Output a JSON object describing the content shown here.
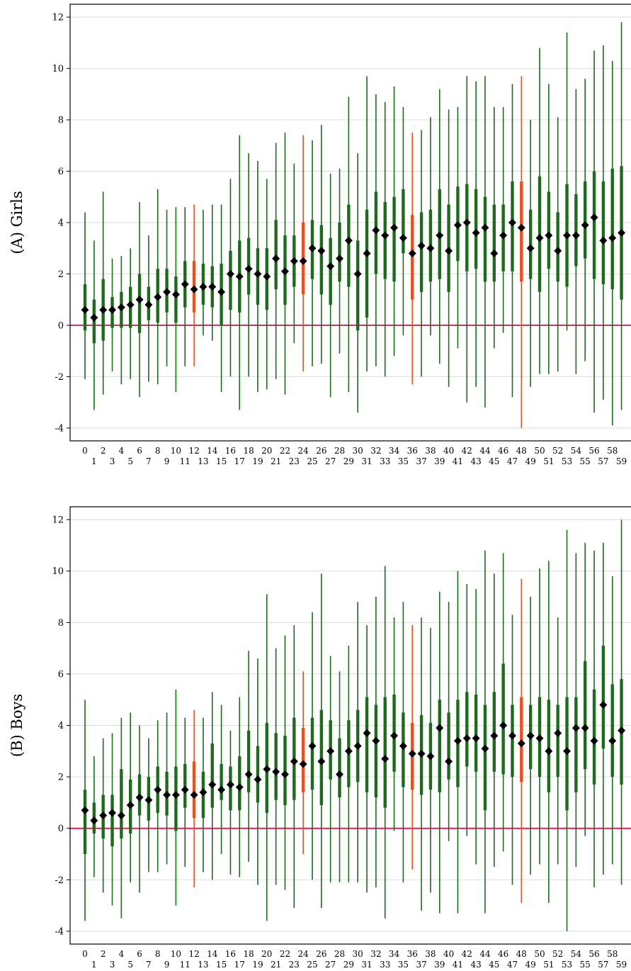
{
  "chart_data": [
    {
      "type": "box",
      "panel_label": "(A) Girls",
      "ylim": [
        -4.5,
        12.5
      ],
      "yticks": [
        -4,
        -2,
        0,
        2,
        4,
        6,
        8,
        10,
        12
      ],
      "ytick_labels": [
        "-4",
        "-2",
        "0",
        "2",
        "4",
        "6",
        "8",
        "10",
        "12"
      ],
      "x": [
        0,
        1,
        2,
        3,
        4,
        5,
        6,
        7,
        8,
        9,
        10,
        11,
        12,
        13,
        14,
        15,
        16,
        17,
        18,
        19,
        20,
        21,
        22,
        23,
        24,
        25,
        26,
        27,
        28,
        29,
        30,
        31,
        32,
        33,
        34,
        35,
        36,
        37,
        38,
        39,
        40,
        41,
        42,
        43,
        44,
        45,
        46,
        47,
        48,
        49,
        50,
        51,
        52,
        53,
        54,
        55,
        56,
        57,
        58,
        59
      ],
      "xtick_labels": [
        "0",
        "1",
        "2",
        "3",
        "4",
        "5",
        "6",
        "7",
        "8",
        "9",
        "10",
        "11",
        "12",
        "13",
        "14",
        "15",
        "16",
        "17",
        "18",
        "19",
        "20",
        "21",
        "22",
        "23",
        "24",
        "25",
        "26",
        "27",
        "28",
        "29",
        "30",
        "31",
        "32",
        "33",
        "34",
        "35",
        "36",
        "37",
        "38",
        "39",
        "40",
        "41",
        "42",
        "43",
        "44",
        "45",
        "46",
        "47",
        "48",
        "49",
        "50",
        "51",
        "52",
        "53",
        "54",
        "55",
        "56",
        "57",
        "58",
        "59"
      ],
      "highlight_x": [
        12,
        24,
        36,
        48
      ],
      "reference_line_y": 0,
      "grid": "horizontal",
      "colors": {
        "box": "#1e6b1e",
        "highlight": "#e8501e",
        "median": "#000000",
        "reference": "#c8003c",
        "grid": "#dcdcdc"
      },
      "median": [
        0.6,
        0.3,
        0.6,
        0.6,
        0.7,
        0.8,
        1.0,
        0.8,
        1.1,
        1.3,
        1.2,
        1.6,
        1.4,
        1.5,
        1.5,
        1.3,
        2.0,
        1.9,
        2.2,
        2.0,
        1.9,
        2.6,
        2.1,
        2.5,
        2.5,
        3.0,
        2.9,
        2.3,
        2.6,
        3.3,
        2.0,
        2.8,
        3.7,
        3.5,
        3.8,
        3.4,
        2.8,
        3.1,
        3.0,
        3.5,
        2.9,
        3.9,
        4.0,
        3.6,
        3.8,
        2.8,
        3.5,
        4.0,
        3.8,
        3.0,
        3.4,
        3.5,
        2.9,
        3.5,
        3.5,
        3.9,
        4.2,
        3.3,
        3.4,
        3.6
      ],
      "q1": [
        -0.2,
        -0.7,
        -0.6,
        -0.1,
        -0.1,
        -0.1,
        -0.3,
        0.2,
        0.1,
        0.5,
        0.1,
        0.7,
        0.5,
        0.8,
        0.7,
        0.0,
        0.6,
        0.5,
        1.2,
        0.8,
        0.6,
        1.4,
        0.8,
        1.5,
        1.2,
        1.8,
        1.2,
        0.8,
        1.7,
        1.5,
        -0.2,
        0.3,
        2.0,
        1.8,
        1.7,
        2.8,
        1.0,
        1.3,
        1.7,
        1.8,
        1.3,
        2.5,
        2.1,
        2.2,
        1.7,
        1.7,
        2.1,
        2.1,
        1.7,
        1.8,
        1.3,
        2.2,
        1.7,
        1.5,
        2.3,
        2.6,
        1.8,
        1.6,
        1.4,
        1.0
      ],
      "q3": [
        1.6,
        1.0,
        1.8,
        1.1,
        1.3,
        1.5,
        2.0,
        1.5,
        2.2,
        2.2,
        1.9,
        2.5,
        2.5,
        2.4,
        2.3,
        2.4,
        2.9,
        3.3,
        3.4,
        3.0,
        3.0,
        4.1,
        3.5,
        3.5,
        4.0,
        4.1,
        3.9,
        3.4,
        4.0,
        4.7,
        3.3,
        4.5,
        5.2,
        4.8,
        5.0,
        5.3,
        4.3,
        4.4,
        4.5,
        5.3,
        4.7,
        5.4,
        5.5,
        5.3,
        5.0,
        4.7,
        4.7,
        5.6,
        5.6,
        4.5,
        5.8,
        5.2,
        4.4,
        5.5,
        5.1,
        5.6,
        6.0,
        5.6,
        6.1,
        6.2
      ],
      "whisker_low": [
        -2.1,
        -3.3,
        -2.7,
        -1.8,
        -2.3,
        -2.1,
        -2.8,
        -2.2,
        -2.3,
        -1.6,
        -2.6,
        -1.6,
        -1.6,
        -0.4,
        -0.6,
        -2.6,
        -2.0,
        -3.3,
        -2.0,
        -2.6,
        -2.5,
        -2.1,
        -2.7,
        -0.7,
        -1.8,
        -1.6,
        -1.5,
        -2.8,
        -1.1,
        -2.6,
        -3.4,
        -1.8,
        -1.6,
        -2.0,
        -1.2,
        -0.4,
        -2.3,
        -2.0,
        -0.4,
        -1.5,
        -2.4,
        -0.9,
        -3.0,
        -2.4,
        -3.2,
        -0.9,
        -0.3,
        -2.8,
        -4.0,
        -2.4,
        -1.9,
        -1.9,
        -1.8,
        -0.2,
        -1.9,
        -1.4,
        -3.4,
        -2.9,
        -3.9,
        -3.3
      ],
      "whisker_high": [
        4.4,
        3.3,
        5.2,
        2.6,
        2.7,
        3.0,
        4.8,
        3.5,
        5.3,
        4.5,
        4.6,
        4.6,
        4.7,
        4.5,
        4.7,
        4.7,
        5.7,
        7.4,
        6.7,
        6.4,
        5.7,
        7.1,
        7.5,
        6.3,
        7.4,
        7.2,
        7.8,
        5.9,
        6.1,
        8.9,
        6.7,
        9.7,
        9.0,
        8.7,
        9.3,
        8.5,
        7.5,
        7.6,
        8.1,
        9.2,
        8.4,
        8.5,
        9.7,
        9.5,
        9.7,
        8.5,
        8.5,
        9.4,
        9.7,
        8.0,
        10.8,
        9.4,
        8.1,
        11.4,
        9.2,
        9.6,
        10.7,
        10.9,
        10.3,
        11.8
      ]
    },
    {
      "type": "box",
      "panel_label": "(B) Boys",
      "ylim": [
        -4.5,
        12.5
      ],
      "yticks": [
        -4,
        -2,
        0,
        2,
        4,
        6,
        8,
        10,
        12
      ],
      "ytick_labels": [
        "-4",
        "-2",
        "0",
        "2",
        "4",
        "6",
        "8",
        "10",
        "12"
      ],
      "x": [
        0,
        1,
        2,
        3,
        4,
        5,
        6,
        7,
        8,
        9,
        10,
        11,
        12,
        13,
        14,
        15,
        16,
        17,
        18,
        19,
        20,
        21,
        22,
        23,
        24,
        25,
        26,
        27,
        28,
        29,
        30,
        31,
        32,
        33,
        34,
        35,
        36,
        37,
        38,
        39,
        40,
        41,
        42,
        43,
        44,
        45,
        46,
        47,
        48,
        49,
        50,
        51,
        52,
        53,
        54,
        55,
        56,
        57,
        58,
        59
      ],
      "xtick_labels": [
        "0",
        "1",
        "2",
        "3",
        "4",
        "5",
        "6",
        "7",
        "8",
        "9",
        "10",
        "11",
        "12",
        "13",
        "14",
        "15",
        "16",
        "17",
        "18",
        "19",
        "20",
        "21",
        "22",
        "23",
        "24",
        "25",
        "26",
        "27",
        "28",
        "29",
        "30",
        "31",
        "32",
        "33",
        "34",
        "35",
        "36",
        "37",
        "38",
        "39",
        "40",
        "41",
        "42",
        "43",
        "44",
        "45",
        "46",
        "47",
        "48",
        "49",
        "50",
        "51",
        "52",
        "53",
        "54",
        "55",
        "56",
        "57",
        "58",
        "59"
      ],
      "highlight_x": [
        12,
        24,
        36,
        48
      ],
      "reference_line_y": 0,
      "grid": "horizontal",
      "colors": {
        "box": "#1e6b1e",
        "highlight": "#e8501e",
        "median": "#000000",
        "reference": "#c8003c",
        "grid": "#dcdcdc"
      },
      "median": [
        0.7,
        0.3,
        0.5,
        0.6,
        0.5,
        0.9,
        1.2,
        1.1,
        1.5,
        1.3,
        1.3,
        1.5,
        1.3,
        1.4,
        1.7,
        1.5,
        1.7,
        1.6,
        2.1,
        1.9,
        2.3,
        2.2,
        2.1,
        2.6,
        2.5,
        3.2,
        2.6,
        3.0,
        2.1,
        3.0,
        3.2,
        3.7,
        3.4,
        2.7,
        3.6,
        3.2,
        2.9,
        2.9,
        2.8,
        3.9,
        2.6,
        3.4,
        3.5,
        3.5,
        3.1,
        3.6,
        4.0,
        3.6,
        3.3,
        3.6,
        3.5,
        3.0,
        3.7,
        3.0,
        3.9,
        3.9,
        3.4,
        4.8,
        3.4,
        3.8
      ],
      "q1": [
        -1.0,
        -0.2,
        -0.4,
        -0.7,
        -0.4,
        -0.2,
        0.5,
        0.3,
        0.6,
        0.5,
        -0.1,
        0.8,
        0.4,
        0.4,
        0.8,
        1.1,
        0.7,
        0.7,
        1.4,
        1.0,
        0.6,
        1.1,
        0.9,
        1.1,
        1.4,
        1.5,
        0.9,
        1.9,
        1.2,
        1.6,
        1.8,
        1.4,
        1.2,
        0.8,
        2.2,
        1.6,
        1.5,
        1.3,
        1.5,
        1.4,
        1.9,
        1.6,
        2.4,
        2.2,
        0.7,
        2.2,
        2.1,
        2.0,
        1.8,
        2.3,
        2.0,
        1.4,
        2.0,
        0.7,
        1.4,
        2.3,
        1.7,
        3.1,
        2.0,
        1.7
      ],
      "q3": [
        1.5,
        1.0,
        1.3,
        1.3,
        2.3,
        1.9,
        2.1,
        2.0,
        2.4,
        2.2,
        2.4,
        2.5,
        2.6,
        2.2,
        3.3,
        2.5,
        2.4,
        2.8,
        3.8,
        3.2,
        4.1,
        3.7,
        3.6,
        4.3,
        3.9,
        4.3,
        4.6,
        4.2,
        3.5,
        4.2,
        4.6,
        5.1,
        4.8,
        5.1,
        5.2,
        4.5,
        4.1,
        4.4,
        4.1,
        5.0,
        4.5,
        5.0,
        5.3,
        5.2,
        4.8,
        5.3,
        6.4,
        4.8,
        5.1,
        4.8,
        5.1,
        5.0,
        4.8,
        5.1,
        5.1,
        6.5,
        5.4,
        7.1,
        5.6,
        5.8
      ],
      "whisker_low": [
        -3.6,
        -1.9,
        -2.5,
        -3.0,
        -3.5,
        -2.1,
        -2.5,
        -1.7,
        -1.7,
        -1.4,
        -3.0,
        -1.5,
        -2.3,
        -1.7,
        -2.0,
        -1.0,
        -1.8,
        -1.9,
        -1.3,
        -2.2,
        -3.6,
        -2.2,
        -2.4,
        -3.1,
        -1.0,
        -2.0,
        -3.1,
        -2.1,
        -2.1,
        -2.1,
        -2.1,
        -2.5,
        -2.3,
        -3.5,
        -0.1,
        -2.1,
        -1.6,
        -3.2,
        -2.5,
        -3.3,
        -0.5,
        -3.3,
        -0.3,
        -1.4,
        -3.3,
        -1.5,
        -0.9,
        -2.2,
        -2.9,
        -1.8,
        -1.4,
        -2.9,
        -1.4,
        -4.0,
        -1.5,
        -0.3,
        -2.3,
        -1.8,
        -1.4,
        -2.2
      ],
      "whisker_high": [
        5.0,
        2.8,
        3.5,
        3.7,
        4.3,
        4.5,
        4.0,
        3.5,
        4.2,
        4.5,
        5.4,
        4.3,
        4.6,
        4.3,
        5.3,
        4.8,
        3.8,
        5.1,
        6.9,
        6.6,
        9.1,
        7.0,
        7.5,
        7.9,
        6.1,
        8.4,
        9.9,
        6.7,
        6.1,
        7.1,
        8.8,
        7.9,
        9.0,
        10.2,
        8.2,
        8.8,
        7.9,
        8.2,
        7.8,
        9.2,
        8.8,
        10.0,
        9.5,
        9.3,
        10.8,
        9.9,
        10.7,
        8.3,
        9.7,
        9.0,
        10.1,
        10.4,
        8.2,
        11.6,
        10.7,
        11.1,
        10.8,
        11.1,
        9.8,
        12.0
      ]
    }
  ]
}
